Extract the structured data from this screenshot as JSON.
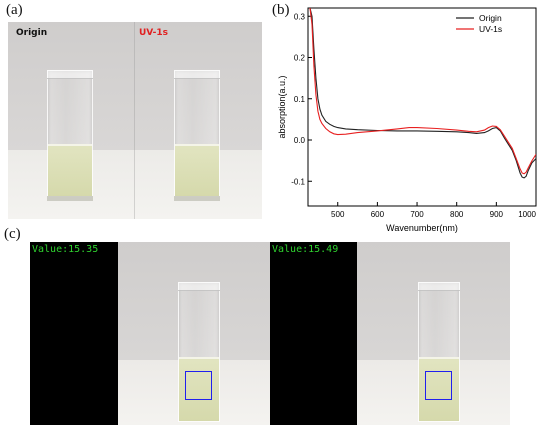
{
  "panels": {
    "a": {
      "label": "(a)",
      "left_label": "Origin",
      "right_label": "UV-1s",
      "left_label_color": "#111111",
      "right_label_color": "#e02020"
    },
    "b": {
      "label": "(b)"
    },
    "c": {
      "label": "(c)",
      "left_value": "Value:15.35",
      "right_value": "Value:15.49",
      "value_color": "#2fd22f",
      "roi_color": "#2020ee"
    }
  },
  "chart_data": {
    "type": "line",
    "title": "",
    "xlabel": "Wavenumber(nm)",
    "ylabel": "absorption(a.u.)",
    "xlim": [
      425,
      1000
    ],
    "ylim": [
      -0.16,
      0.32
    ],
    "xticks": [
      "500",
      "600",
      "700",
      "800",
      "900",
      "1000"
    ],
    "yticks": [
      "-0.1",
      "0.0",
      "0.1",
      "0.2",
      "0.3"
    ],
    "legend_position": "top-right",
    "series": [
      {
        "name": "Origin",
        "color": "#222222",
        "x": [
          430,
          435,
          440,
          445,
          450,
          455,
          460,
          470,
          480,
          490,
          500,
          520,
          550,
          600,
          650,
          700,
          750,
          800,
          830,
          850,
          870,
          880,
          890,
          900,
          910,
          920,
          930,
          940,
          950,
          960,
          965,
          970,
          975,
          980,
          990,
          1000
        ],
        "y": [
          0.32,
          0.3,
          0.22,
          0.15,
          0.1,
          0.075,
          0.06,
          0.045,
          0.038,
          0.033,
          0.03,
          0.027,
          0.025,
          0.023,
          0.022,
          0.022,
          0.021,
          0.02,
          0.018,
          0.016,
          0.018,
          0.022,
          0.028,
          0.03,
          0.022,
          0.005,
          -0.01,
          -0.025,
          -0.05,
          -0.08,
          -0.09,
          -0.092,
          -0.088,
          -0.075,
          -0.055,
          -0.045
        ]
      },
      {
        "name": "UV-1s",
        "color": "#e82020",
        "x": [
          430,
          435,
          440,
          445,
          450,
          455,
          460,
          470,
          480,
          490,
          500,
          520,
          550,
          600,
          650,
          680,
          700,
          750,
          800,
          830,
          850,
          870,
          880,
          890,
          900,
          910,
          920,
          930,
          940,
          950,
          960,
          965,
          970,
          975,
          980,
          990,
          1000
        ],
        "y": [
          0.32,
          0.28,
          0.18,
          0.11,
          0.07,
          0.05,
          0.04,
          0.028,
          0.02,
          0.015,
          0.013,
          0.014,
          0.018,
          0.022,
          0.027,
          0.03,
          0.03,
          0.028,
          0.024,
          0.021,
          0.02,
          0.024,
          0.03,
          0.034,
          0.033,
          0.025,
          0.01,
          -0.005,
          -0.02,
          -0.045,
          -0.07,
          -0.08,
          -0.082,
          -0.078,
          -0.068,
          -0.05,
          -0.035
        ]
      }
    ]
  }
}
